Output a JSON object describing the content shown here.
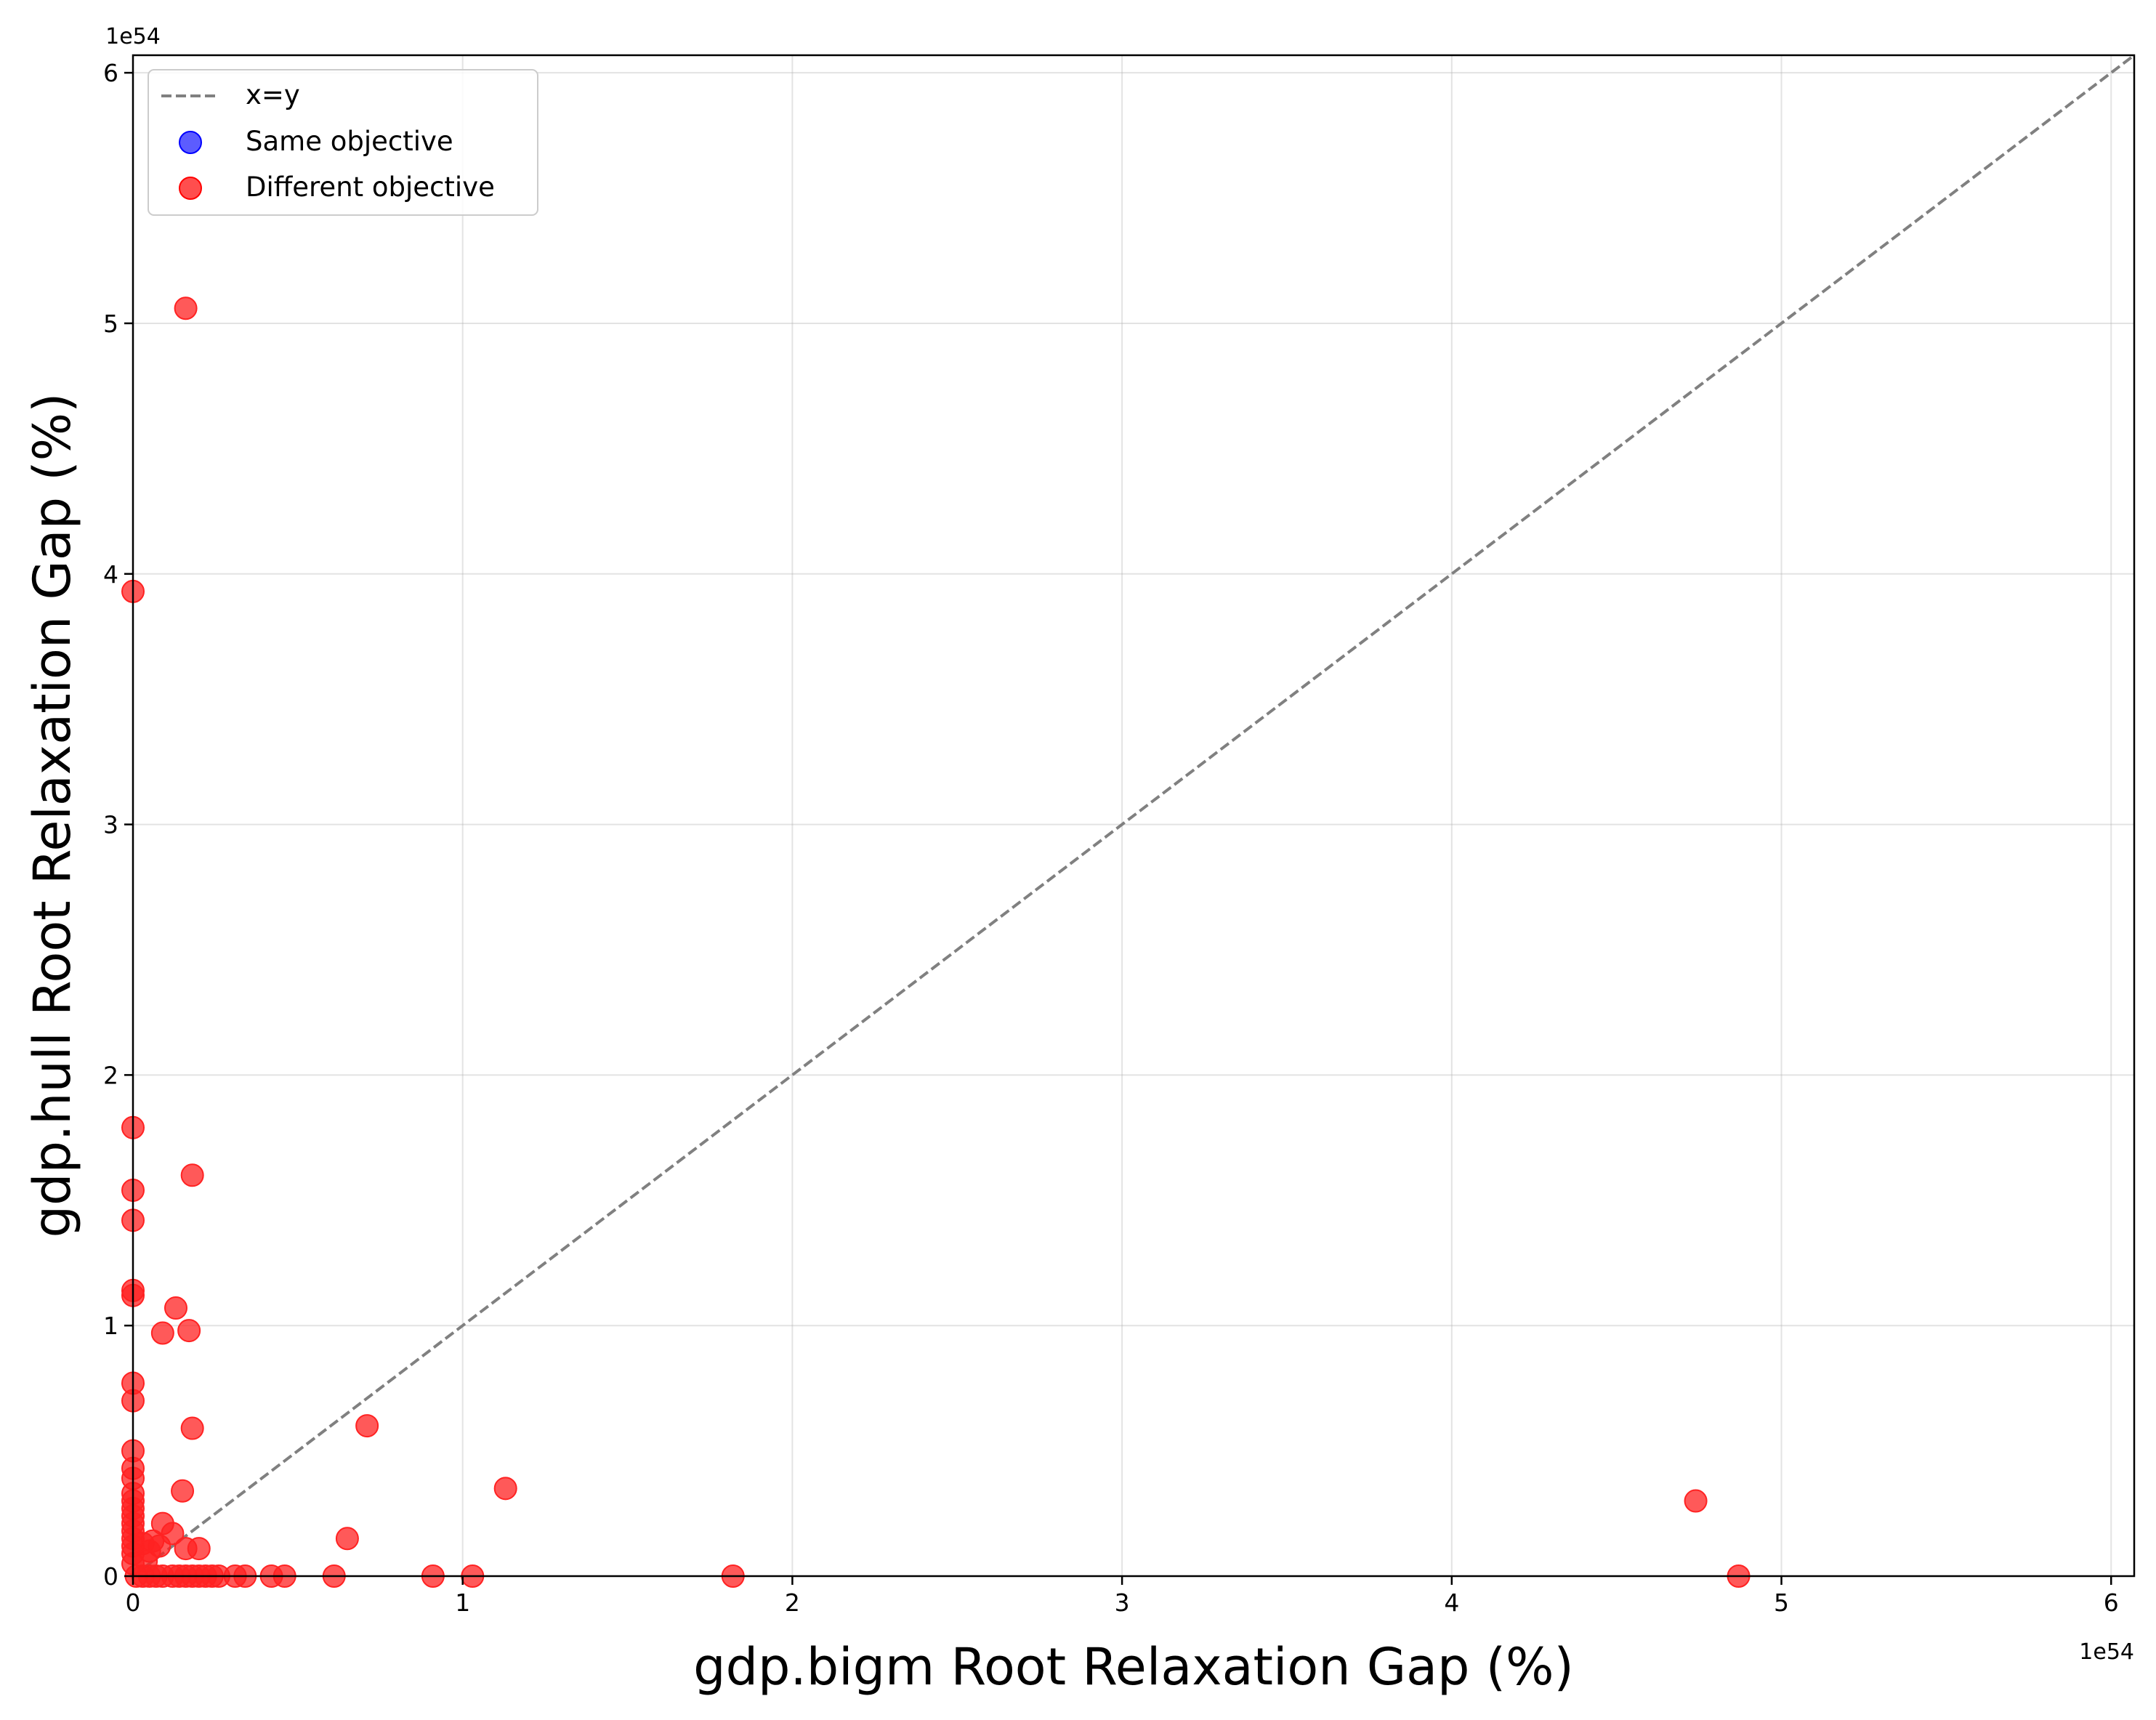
{
  "chart_data": {
    "type": "scatter",
    "xlabel": "gdp.bigm Root Relaxation Gap (%)",
    "ylabel": "gdp.hull Root Relaxation Gap (%)",
    "x_multiplier": "1e54",
    "y_multiplier": "1e54",
    "xlim": [
      0,
      6.07
    ],
    "ylim": [
      0,
      6.07
    ],
    "xticks": [
      0,
      1,
      2,
      3,
      4,
      5,
      6
    ],
    "yticks": [
      0,
      1,
      2,
      3,
      4,
      5,
      6
    ],
    "xtick_labels": [
      "0",
      "1",
      "2",
      "3",
      "4",
      "5",
      "6"
    ],
    "ytick_labels": [
      "0",
      "1",
      "2",
      "3",
      "4",
      "5",
      "6"
    ],
    "grid": true,
    "legend": {
      "placement": "top-left",
      "entries": [
        "x=y",
        "Same objective",
        "Different objective"
      ]
    },
    "reference_line": {
      "label": "x=y",
      "style": "dashed",
      "color": "#808080"
    },
    "colors": {
      "same": "#3333ff",
      "different": "#ff2222"
    },
    "series": [
      {
        "name": "Same objective",
        "color": "#3333ff",
        "points": []
      },
      {
        "name": "Different objective",
        "color": "#ff2222",
        "points": [
          [
            0.16,
            5.06
          ],
          [
            0.0,
            3.93
          ],
          [
            0.0,
            1.79
          ],
          [
            0.0,
            1.54
          ],
          [
            0.0,
            1.42
          ],
          [
            0.0,
            1.14
          ],
          [
            0.0,
            1.12
          ],
          [
            0.18,
            1.6
          ],
          [
            0.13,
            1.07
          ],
          [
            0.09,
            0.97
          ],
          [
            0.17,
            0.98
          ],
          [
            0.0,
            0.77
          ],
          [
            0.0,
            0.7
          ],
          [
            0.71,
            0.6
          ],
          [
            0.18,
            0.59
          ],
          [
            0.0,
            0.5
          ],
          [
            0.0,
            0.43
          ],
          [
            0.0,
            0.39
          ],
          [
            0.0,
            0.33
          ],
          [
            0.0,
            0.3
          ],
          [
            0.0,
            0.27
          ],
          [
            0.0,
            0.24
          ],
          [
            0.0,
            0.21
          ],
          [
            0.0,
            0.18
          ],
          [
            0.0,
            0.15
          ],
          [
            0.0,
            0.12
          ],
          [
            0.0,
            0.09
          ],
          [
            0.0,
            0.05
          ],
          [
            0.15,
            0.34
          ],
          [
            1.13,
            0.35
          ],
          [
            0.09,
            0.21
          ],
          [
            0.12,
            0.17
          ],
          [
            0.65,
            0.15
          ],
          [
            0.06,
            0.14
          ],
          [
            0.03,
            0.13
          ],
          [
            0.08,
            0.12
          ],
          [
            0.16,
            0.11
          ],
          [
            0.2,
            0.11
          ],
          [
            0.05,
            0.1
          ],
          [
            0.04,
            0.06
          ],
          [
            4.74,
            0.3
          ],
          [
            0.01,
            0.0
          ],
          [
            0.03,
            0.0
          ],
          [
            0.05,
            0.0
          ],
          [
            0.07,
            0.0
          ],
          [
            0.09,
            0.0
          ],
          [
            0.12,
            0.0
          ],
          [
            0.14,
            0.0
          ],
          [
            0.16,
            0.0
          ],
          [
            0.18,
            0.0
          ],
          [
            0.2,
            0.0
          ],
          [
            0.22,
            0.0
          ],
          [
            0.24,
            0.0
          ],
          [
            0.26,
            0.0
          ],
          [
            0.31,
            0.0
          ],
          [
            0.34,
            0.0
          ],
          [
            0.42,
            0.0
          ],
          [
            0.46,
            0.0
          ],
          [
            0.61,
            0.0
          ],
          [
            0.91,
            0.0
          ],
          [
            1.03,
            0.0
          ],
          [
            1.82,
            0.0
          ],
          [
            4.87,
            0.0
          ]
        ]
      }
    ]
  }
}
